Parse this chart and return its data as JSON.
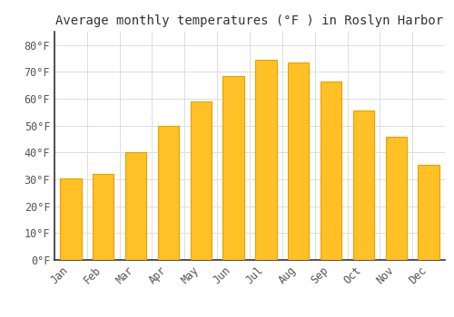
{
  "months": [
    "Jan",
    "Feb",
    "Mar",
    "Apr",
    "May",
    "Jun",
    "Jul",
    "Aug",
    "Sep",
    "Oct",
    "Nov",
    "Dec"
  ],
  "values": [
    30.5,
    32.0,
    40.0,
    50.0,
    59.0,
    68.5,
    74.5,
    73.5,
    66.5,
    55.5,
    46.0,
    35.5
  ],
  "bar_color_face": "#FFC125",
  "bar_color_edge": "#E8A000",
  "title": "Average monthly temperatures (°F ) in Roslyn Harbor",
  "ylim": [
    0,
    85
  ],
  "yticks": [
    0,
    10,
    20,
    30,
    40,
    50,
    60,
    70,
    80
  ],
  "ytick_labels": [
    "0°F",
    "10°F",
    "20°F",
    "30°F",
    "40°F",
    "50°F",
    "60°F",
    "70°F",
    "80°F"
  ],
  "bg_color": "#FFFFFF",
  "grid_color": "#DDDDDD",
  "title_fontsize": 10,
  "tick_fontsize": 8.5,
  "font_family": "monospace",
  "title_color": "#333333",
  "tick_color": "#555555"
}
